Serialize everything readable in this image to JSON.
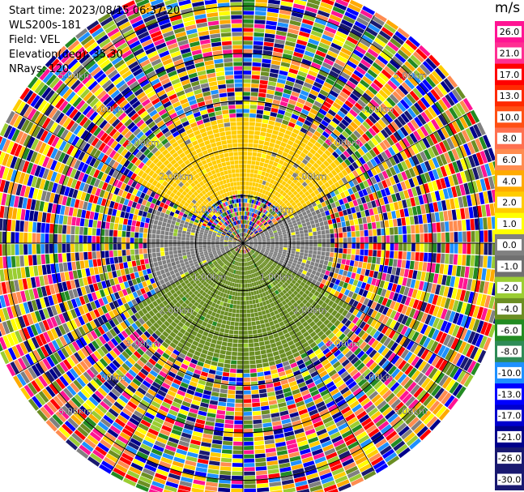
{
  "header": {
    "start_time": "Start time: 2023/08/15 06:37:20",
    "instrument": "WLS200s-181",
    "field": "Field: VEL",
    "elevation": "Elevation(deg): 35.30",
    "nrays": "NRays: 120"
  },
  "colorbar": {
    "unit": "m/s",
    "ticks": [
      "26.0",
      "21.0",
      "17.0",
      "13.0",
      "10.0",
      "8.0",
      "6.0",
      "4.0",
      "2.0",
      "1.0",
      "0.0",
      "-1.0",
      "-2.0",
      "-4.0",
      "-6.0",
      "-8.0",
      "-10.0",
      "-13.0",
      "-17.0",
      "-21.0",
      "-26.0",
      "-30.0"
    ],
    "colors": [
      "#ff1493",
      "#ff2f92",
      "#ff0000",
      "#ff2a00",
      "#ff5014",
      "#ff7050",
      "#ff8c50",
      "#ffaa00",
      "#ffcc00",
      "#ffff00",
      "#808080",
      "#707070",
      "#9acd32",
      "#6b8e23",
      "#228b22",
      "#2e8b57",
      "#1e90ff",
      "#0000ff",
      "#0000cd",
      "#00008b",
      "#191970",
      "#191970"
    ]
  },
  "chart_data": {
    "type": "heatmap",
    "subtype": "polar-ppi",
    "field": "VEL",
    "units": "m/s",
    "nrays": 120,
    "elevation_deg": 35.3,
    "range_ring_labels": [
      "1.00km",
      "2.00km",
      "3.00km",
      "4.00km",
      "5.00km"
    ],
    "range_rings_km": [
      1,
      2,
      3,
      4,
      5
    ],
    "value_range": [
      -30,
      26
    ],
    "sectors": [
      {
        "azimuth_from_deg": 300,
        "azimuth_to_deg": 60,
        "range_km": [
          1.0,
          2.6
        ],
        "value_ms": 2.0,
        "note": "yellow"
      },
      {
        "azimuth_from_deg": 20,
        "azimuth_to_deg": 45,
        "range_km": [
          1.0,
          2.2
        ],
        "value_ms": 4.0,
        "note": "orange"
      },
      {
        "azimuth_from_deg": 60,
        "azimuth_to_deg": 120,
        "range_km": [
          0.0,
          1.8
        ],
        "value_ms": 0.0,
        "note": "grey"
      },
      {
        "azimuth_from_deg": 240,
        "azimuth_to_deg": 290,
        "range_km": [
          0.0,
          2.0
        ],
        "value_ms": 0.0,
        "note": "grey"
      },
      {
        "azimuth_from_deg": 120,
        "azimuth_to_deg": 240,
        "range_km": [
          0.2,
          2.6
        ],
        "value_ms": -3.0,
        "note": "green"
      }
    ],
    "far_range_km": [
      2.6,
      5.6
    ],
    "far_range_note": "noise (mixed values)"
  }
}
